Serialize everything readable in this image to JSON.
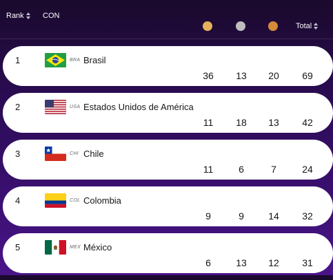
{
  "header": {
    "rank_label": "Rank",
    "con_label": "CON",
    "total_label": "Total",
    "medal_colors": {
      "gold": "#e5b25a",
      "silver": "#bdbdbd",
      "bronze": "#d68a3a"
    }
  },
  "rows": [
    {
      "rank": "1",
      "code": "BRA",
      "country": "Brasil",
      "flag": "brazil-flag-icon",
      "gold": "36",
      "silver": "13",
      "bronze": "20",
      "total": "69"
    },
    {
      "rank": "2",
      "code": "USA",
      "country": "Estados Unidos de América",
      "flag": "usa-flag-icon",
      "gold": "11",
      "silver": "18",
      "bronze": "13",
      "total": "42"
    },
    {
      "rank": "3",
      "code": "CHI",
      "country": "Chile",
      "flag": "chile-flag-icon",
      "gold": "11",
      "silver": "6",
      "bronze": "7",
      "total": "24"
    },
    {
      "rank": "4",
      "code": "COL",
      "country": "Colombia",
      "flag": "colombia-flag-icon",
      "gold": "9",
      "silver": "9",
      "bronze": "14",
      "total": "32"
    },
    {
      "rank": "5",
      "code": "MEX",
      "country": "México",
      "flag": "mexico-flag-icon",
      "gold": "6",
      "silver": "13",
      "bronze": "12",
      "total": "31"
    }
  ]
}
